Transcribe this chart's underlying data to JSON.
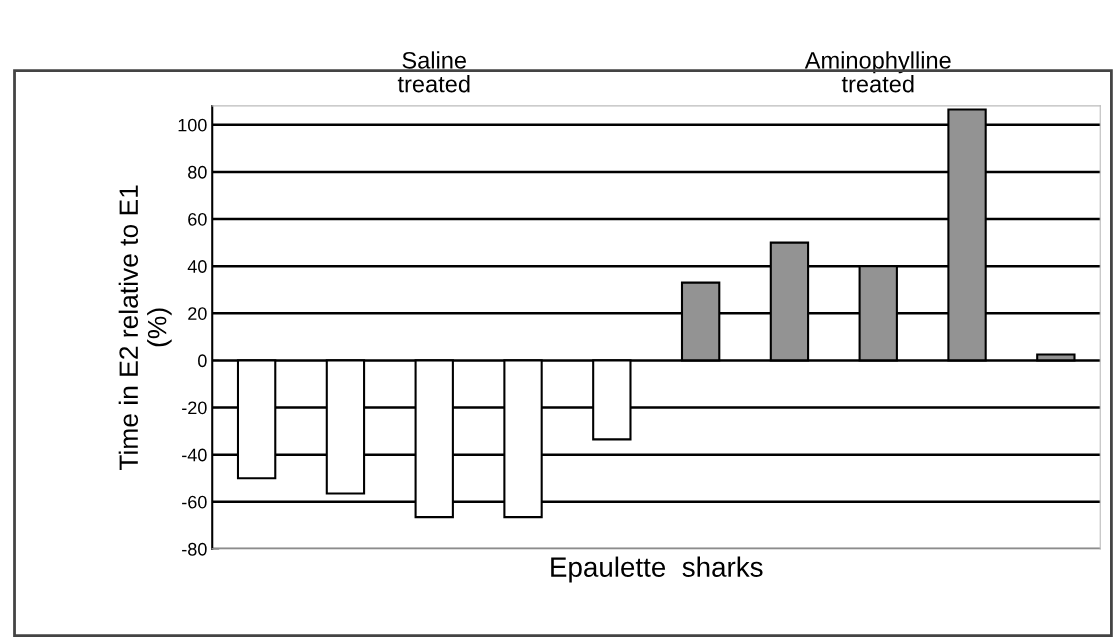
{
  "chart_data": {
    "type": "bar",
    "categories": [
      null,
      null,
      null,
      null,
      null,
      null,
      null,
      null,
      null,
      null
    ],
    "values": [
      -50,
      -56.5,
      -66.5,
      -66.5,
      -33.5,
      33,
      50,
      40,
      106.5,
      2.5
    ],
    "colors": [
      "#ffffff",
      "#ffffff",
      "#ffffff",
      "#ffffff",
      "#ffffff",
      "#939393",
      "#939393",
      "#939393",
      "#939393",
      "#939393"
    ],
    "xlabel": "Epaulette  sharks",
    "ylabel": "Time in E2 relative to E1\n(%)",
    "annotations": [
      {
        "text": "Saline\ntreated"
      },
      {
        "text": "Aminophylline\ntreated"
      }
    ],
    "ylim": [
      -80,
      108
    ],
    "yticks": [
      -80,
      -60,
      -40,
      -20,
      0,
      20,
      40,
      60,
      80,
      100
    ],
    "grid": "y"
  }
}
